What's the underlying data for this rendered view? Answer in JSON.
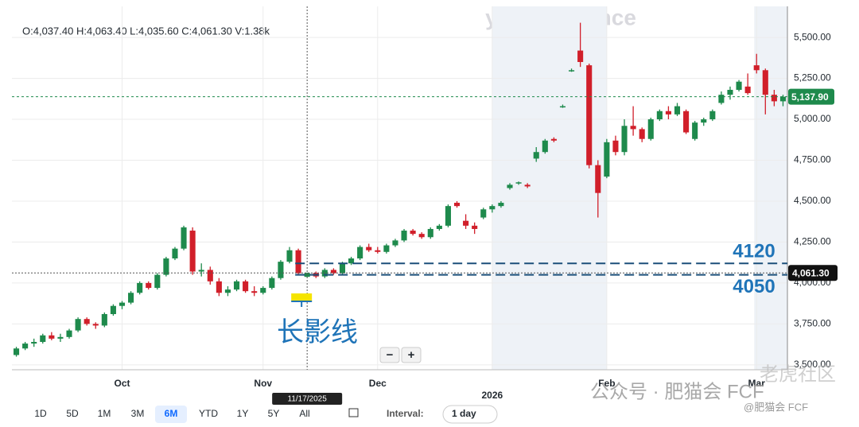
{
  "chart_data": {
    "type": "candlestick",
    "header": "O:4,037.40 H:4,063.40 L:4,035.60 C:4,061.30 V:1.38k",
    "logo": "yahoo!finance",
    "up_color": "#1e8a4c",
    "down_color": "#d11f2a",
    "candles": [
      [
        3560,
        3610,
        3550,
        3600
      ],
      [
        3600,
        3640,
        3590,
        3630
      ],
      [
        3630,
        3660,
        3610,
        3640
      ],
      [
        3640,
        3690,
        3630,
        3680
      ],
      [
        3680,
        3700,
        3650,
        3660
      ],
      [
        3660,
        3690,
        3640,
        3670
      ],
      [
        3670,
        3720,
        3660,
        3710
      ],
      [
        3710,
        3790,
        3700,
        3780
      ],
      [
        3780,
        3790,
        3740,
        3750
      ],
      [
        3750,
        3760,
        3720,
        3740
      ],
      [
        3740,
        3820,
        3730,
        3810
      ],
      [
        3810,
        3870,
        3800,
        3860
      ],
      [
        3860,
        3890,
        3840,
        3880
      ],
      [
        3880,
        3950,
        3870,
        3940
      ],
      [
        3940,
        4010,
        3930,
        4000
      ],
      [
        4000,
        4010,
        3960,
        3970
      ],
      [
        3970,
        4060,
        3960,
        4050
      ],
      [
        4050,
        4160,
        4040,
        4150
      ],
      [
        4150,
        4220,
        4140,
        4210
      ],
      [
        4210,
        4350,
        4200,
        4340
      ],
      [
        4320,
        4340,
        4050,
        4070
      ],
      [
        4070,
        4120,
        4040,
        4080
      ],
      [
        4080,
        4100,
        3990,
        4010
      ],
      [
        4010,
        4030,
        3920,
        3940
      ],
      [
        3940,
        3980,
        3920,
        3960
      ],
      [
        3960,
        4020,
        3950,
        4010
      ],
      [
        4010,
        4020,
        3940,
        3950
      ],
      [
        3950,
        3980,
        3920,
        3940
      ],
      [
        3940,
        3980,
        3930,
        3970
      ],
      [
        3970,
        4040,
        3960,
        4030
      ],
      [
        4030,
        4140,
        4020,
        4130
      ],
      [
        4130,
        4220,
        4120,
        4200
      ],
      [
        4200,
        4210,
        4050,
        4060
      ],
      [
        4037.4,
        4063.4,
        4035.6,
        4061.3
      ],
      [
        4061,
        4070,
        4030,
        4040
      ],
      [
        4040,
        4090,
        4030,
        4080
      ],
      [
        4080,
        4090,
        4050,
        4060
      ],
      [
        4060,
        4130,
        4050,
        4120
      ],
      [
        4120,
        4160,
        4110,
        4150
      ],
      [
        4150,
        4230,
        4140,
        4220
      ],
      [
        4220,
        4240,
        4190,
        4200
      ],
      [
        4200,
        4220,
        4180,
        4190
      ],
      [
        4190,
        4240,
        4180,
        4230
      ],
      [
        4230,
        4270,
        4220,
        4260
      ],
      [
        4260,
        4330,
        4250,
        4320
      ],
      [
        4320,
        4330,
        4290,
        4300
      ],
      [
        4300,
        4310,
        4270,
        4280
      ],
      [
        4280,
        4340,
        4270,
        4330
      ],
      [
        4330,
        4360,
        4320,
        4350
      ],
      [
        4350,
        4480,
        4340,
        4470
      ],
      [
        4490,
        4500,
        4460,
        4470
      ],
      [
        4380,
        4420,
        4330,
        4350
      ],
      [
        4350,
        4370,
        4300,
        4330
      ],
      [
        4400,
        4460,
        4390,
        4450
      ],
      [
        4450,
        4480,
        4430,
        4470
      ],
      [
        4470,
        4500,
        4460,
        4490
      ],
      [
        4580,
        4610,
        4570,
        4600
      ],
      [
        4610,
        4620,
        4600,
        4615
      ],
      [
        4600,
        4610,
        4580,
        4590
      ],
      [
        4760,
        4830,
        4740,
        4800
      ],
      [
        4800,
        4880,
        4790,
        4870
      ],
      [
        4880,
        4890,
        4860,
        4870
      ],
      [
        5080,
        5090,
        5070,
        5080
      ],
      [
        5300,
        5310,
        5290,
        5300
      ],
      [
        5420,
        5590,
        5320,
        5350
      ],
      [
        5330,
        5340,
        4700,
        4720
      ],
      [
        4720,
        4750,
        4400,
        4550
      ],
      [
        4650,
        4880,
        4640,
        4860
      ],
      [
        4870,
        4900,
        4780,
        4800
      ],
      [
        4800,
        5000,
        4780,
        4960
      ],
      [
        4960,
        5080,
        4900,
        4940
      ],
      [
        4940,
        4950,
        4860,
        4880
      ],
      [
        4880,
        5010,
        4870,
        5000
      ],
      [
        5000,
        5060,
        4990,
        5050
      ],
      [
        5050,
        5080,
        5000,
        5030
      ],
      [
        5030,
        5100,
        5020,
        5080
      ],
      [
        5050,
        5060,
        4910,
        4920
      ],
      [
        4880,
        4990,
        4870,
        4980
      ],
      [
        4980,
        5010,
        4960,
        5000
      ],
      [
        5000,
        5060,
        4990,
        5050
      ],
      [
        5100,
        5170,
        5090,
        5150
      ],
      [
        5150,
        5200,
        5120,
        5180
      ],
      [
        5180,
        5240,
        5170,
        5230
      ],
      [
        5200,
        5280,
        5150,
        5160
      ],
      [
        5330,
        5400,
        5280,
        5300
      ],
      [
        5300,
        5310,
        5030,
        5150
      ],
      [
        5150,
        5180,
        5080,
        5110
      ],
      [
        5110,
        5150,
        5080,
        5137.9
      ]
    ],
    "xlim": [
      -0.5,
      87.5
    ],
    "xticks": [
      {
        "value": 12,
        "label": "Oct"
      },
      {
        "value": 28,
        "label": "Nov"
      },
      {
        "value": 41,
        "label": "Dec"
      },
      {
        "value": 54,
        "label": "2026"
      },
      {
        "value": 67,
        "label": "Feb"
      },
      {
        "value": 84,
        "label": "Mar"
      }
    ],
    "ylim": [
      3470,
      5690
    ],
    "yticks": [
      {
        "value": 3500,
        "label": "3,500.00"
      },
      {
        "value": 3750,
        "label": "3,750.00"
      },
      {
        "value": 4000,
        "label": "4,000.00"
      },
      {
        "value": 4250,
        "label": "4,250.00"
      },
      {
        "value": 4500,
        "label": "4,500.00"
      },
      {
        "value": 4750,
        "label": "4,750.00"
      },
      {
        "value": 5000,
        "label": "5,000.00"
      },
      {
        "value": 5250,
        "label": "5,250.00"
      },
      {
        "value": 5500,
        "label": "5,500.00"
      }
    ],
    "grid": true,
    "last_price": {
      "value": 5137.9,
      "label": "5,137.90"
    },
    "crosshair": {
      "value": 4061.3,
      "label": "4,061.30",
      "date": "11/17/2025"
    },
    "levels": [
      4120,
      4050
    ],
    "annotation": "长影线",
    "zoom": [
      "−",
      "+"
    ],
    "ranges": [
      "1D",
      "5D",
      "1M",
      "3M",
      "6M",
      "YTD",
      "1Y",
      "5Y",
      "All"
    ],
    "active_range": "6M",
    "interval_label": "Interval:",
    "interval": "1 day",
    "watermarks": [
      "公众号 · 肥猫会 FCF",
      "@肥猫会 FCF",
      "老虎社区"
    ]
  }
}
